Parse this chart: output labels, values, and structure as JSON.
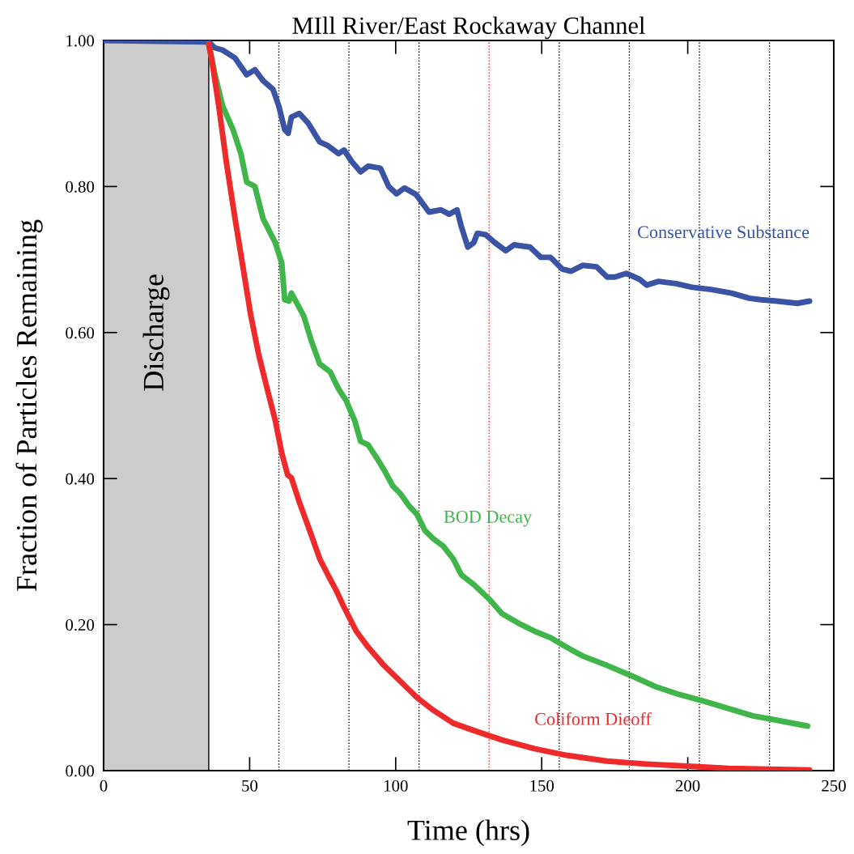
{
  "chart_data": {
    "type": "line",
    "title": "MIll River/East Rockaway Channel",
    "xlabel": "Time (hrs)",
    "ylabel": "Fraction of Particles Remaining",
    "xlim": [
      0,
      250
    ],
    "ylim": [
      0,
      1
    ],
    "xticks": [
      0,
      50,
      100,
      150,
      200,
      250
    ],
    "yticks": [
      {
        "value": 0,
        "label": "0.00"
      },
      {
        "value": 0.2,
        "label": "0.20"
      },
      {
        "value": 0.4,
        "label": "0.40"
      },
      {
        "value": 0.6,
        "label": "0.60"
      },
      {
        "value": 0.8,
        "label": "0.80"
      },
      {
        "value": 1,
        "label": "1.00"
      }
    ],
    "grid": false,
    "legend": false,
    "marker": "none",
    "line_style": "solid",
    "bands": [
      {
        "axis": "x",
        "from": 0,
        "to": 36,
        "label": "Discharge",
        "color": "#cccccc"
      }
    ],
    "ref_lines": [
      {
        "axis": "x",
        "value": 60,
        "color": "#000000",
        "line_style": "dotted"
      },
      {
        "axis": "x",
        "value": 84,
        "color": "#000000",
        "line_style": "dotted"
      },
      {
        "axis": "x",
        "value": 108,
        "color": "#000000",
        "line_style": "dotted"
      },
      {
        "axis": "x",
        "value": 132,
        "color": "#ee2a2a",
        "line_style": "dotted"
      },
      {
        "axis": "x",
        "value": 156,
        "color": "#000000",
        "line_style": "dotted"
      },
      {
        "axis": "x",
        "value": 180,
        "color": "#000000",
        "line_style": "dotted"
      },
      {
        "axis": "x",
        "value": 204,
        "color": "#000000",
        "line_style": "dotted"
      },
      {
        "axis": "x",
        "value": 228,
        "color": "#000000",
        "line_style": "dotted"
      }
    ],
    "series": [
      {
        "name": "Conservative Substance",
        "color": "#3a53a4",
        "x": [
          0,
          36,
          38,
          40.7,
          45,
          49,
          51.8,
          54.6,
          58,
          60,
          62,
          63.2,
          64.3,
          67,
          70,
          74,
          76.8,
          80.4,
          82.3,
          85,
          88,
          90.6,
          94.8,
          97.6,
          100.3,
          103,
          107,
          111.4,
          115.5,
          118.3,
          121,
          122.5,
          124.7,
          126.7,
          128,
          130.8,
          134,
          137.7,
          140.5,
          146,
          149.7,
          153,
          157,
          160,
          164,
          168.8,
          172.4,
          175,
          179,
          183.5,
          186,
          190,
          196,
          201.5,
          208,
          215,
          221,
          225,
          230.6,
          237.5,
          241.7
        ],
        "values": [
          1.0,
          0.998,
          0.99,
          0.987,
          0.976,
          0.953,
          0.96,
          0.945,
          0.933,
          0.91,
          0.878,
          0.873,
          0.895,
          0.9,
          0.887,
          0.861,
          0.856,
          0.845,
          0.85,
          0.834,
          0.82,
          0.828,
          0.825,
          0.8,
          0.79,
          0.798,
          0.789,
          0.765,
          0.768,
          0.762,
          0.768,
          0.745,
          0.717,
          0.723,
          0.736,
          0.734,
          0.723,
          0.712,
          0.72,
          0.717,
          0.703,
          0.703,
          0.687,
          0.684,
          0.692,
          0.69,
          0.676,
          0.676,
          0.681,
          0.673,
          0.665,
          0.67,
          0.667,
          0.662,
          0.659,
          0.654,
          0.647,
          0.645,
          0.643,
          0.64,
          0.643
        ]
      },
      {
        "name": "BOD Decay",
        "color": "#3fb54a",
        "x": [
          36,
          38,
          40.7,
          44.3,
          47,
          49,
          51.8,
          54.6,
          58.8,
          61,
          62,
          63.5,
          64.3,
          68.5,
          71,
          74,
          77.6,
          80.4,
          83,
          86,
          88,
          90.6,
          93.4,
          96,
          99,
          101.7,
          104.5,
          107.3,
          110,
          112.8,
          116.4,
          119.7,
          122.5,
          126.7,
          132,
          136.4,
          142,
          147.5,
          153,
          158.5,
          164,
          172.4,
          180.7,
          189,
          197.3,
          205.7,
          214,
          222.3,
          230.6,
          241
        ],
        "values": [
          0.995,
          0.956,
          0.911,
          0.878,
          0.845,
          0.806,
          0.8,
          0.756,
          0.723,
          0.695,
          0.645,
          0.643,
          0.654,
          0.623,
          0.59,
          0.557,
          0.546,
          0.523,
          0.507,
          0.479,
          0.451,
          0.446,
          0.429,
          0.412,
          0.39,
          0.379,
          0.363,
          0.351,
          0.329,
          0.318,
          0.307,
          0.29,
          0.268,
          0.255,
          0.235,
          0.215,
          0.202,
          0.191,
          0.182,
          0.169,
          0.157,
          0.144,
          0.13,
          0.115,
          0.104,
          0.095,
          0.085,
          0.075,
          0.069,
          0.061
        ]
      },
      {
        "name": "Coliform Dieoff",
        "color": "#ee2a2a",
        "x": [
          36,
          37.1,
          39.4,
          42,
          45,
          47.7,
          50.4,
          53.2,
          56,
          58.8,
          61,
          63,
          64.3,
          67,
          71,
          74,
          76.8,
          79.5,
          82.3,
          86.5,
          90.6,
          96,
          101.7,
          107.3,
          112.8,
          119.7,
          126.7,
          136.4,
          147.5,
          158.5,
          172.4,
          186,
          200,
          214,
          241.7
        ],
        "values": [
          0.995,
          0.972,
          0.911,
          0.834,
          0.756,
          0.69,
          0.623,
          0.568,
          0.523,
          0.479,
          0.435,
          0.405,
          0.401,
          0.368,
          0.324,
          0.29,
          0.268,
          0.248,
          0.224,
          0.191,
          0.169,
          0.144,
          0.122,
          0.1,
          0.083,
          0.065,
          0.055,
          0.042,
          0.03,
          0.021,
          0.013,
          0.009,
          0.006,
          0.003,
          0.001
        ]
      }
    ]
  }
}
